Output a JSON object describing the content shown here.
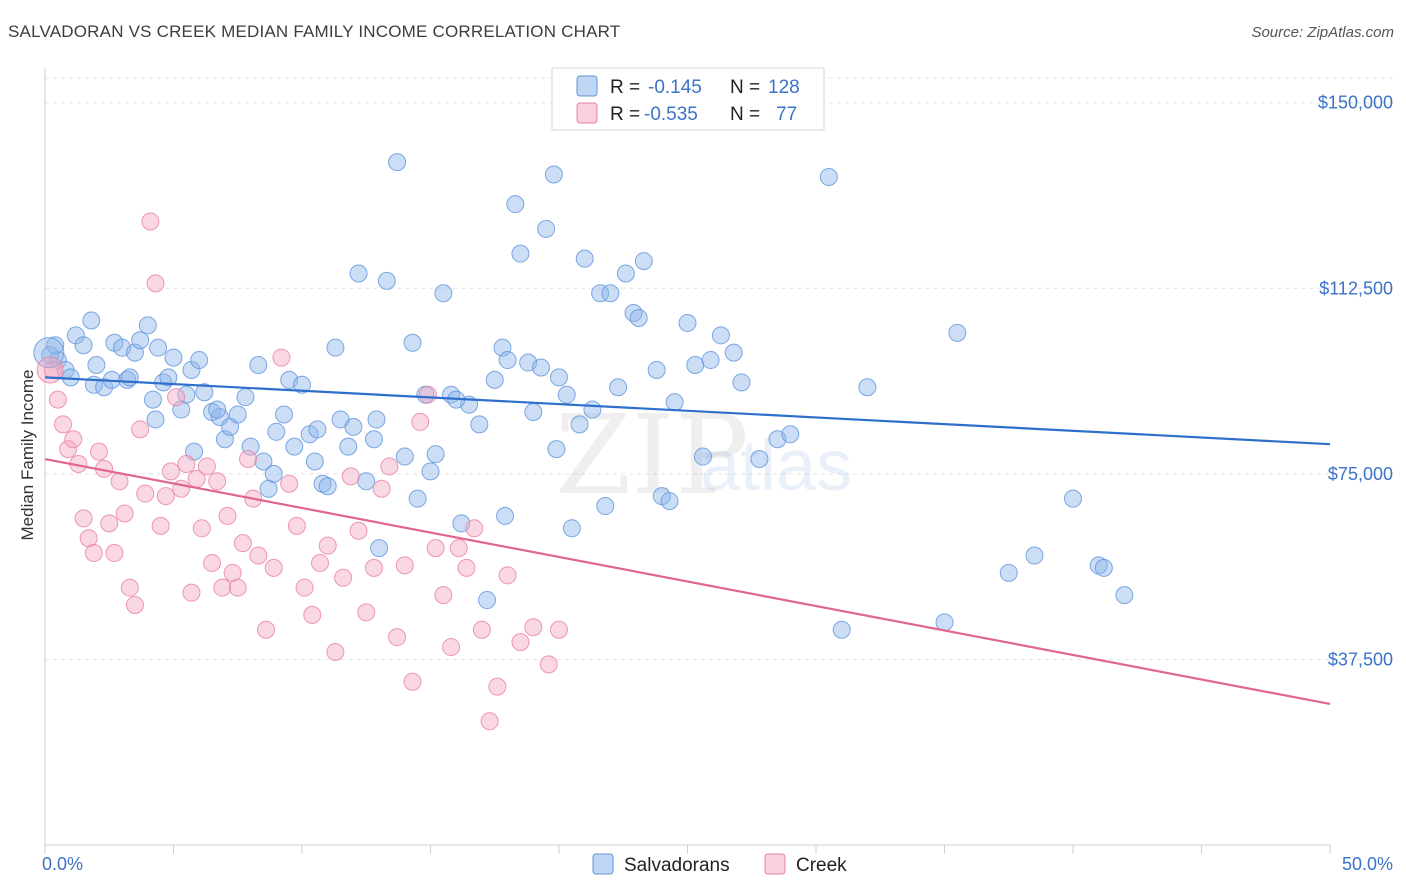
{
  "header": {
    "title": "SALVADORAN VS CREEK MEDIAN FAMILY INCOME CORRELATION CHART",
    "source": "Source: ZipAtlas.com"
  },
  "watermark": {
    "zip": "ZIP",
    "atlas": "atlas"
  },
  "legend": {
    "r_label": "R =",
    "n_label": "N =",
    "rows": [
      {
        "series": "Salvadorans",
        "r": "-0.145",
        "n": "128"
      },
      {
        "series": "Creek",
        "r": "-0.535",
        "n": "77"
      }
    ]
  },
  "colors": {
    "salvadorans": "#8db6ea",
    "salvadorans_line": "#2f6fcc",
    "creek": "#f4a9c2",
    "creek_line": "#e06690",
    "tick_label": "#3b73c8",
    "grid": "#e3e3e3"
  },
  "chart_data": {
    "type": "scatter",
    "xlabel": "",
    "ylabel": "Median Family Income",
    "xlim": [
      0,
      50
    ],
    "ylim": [
      0,
      155000
    ],
    "x_tick_labels": [
      "0.0%",
      "50.0%"
    ],
    "y_ticks": [
      {
        "value": 150000,
        "label": "$150,000"
      },
      {
        "value": 112500,
        "label": "$112,500"
      },
      {
        "value": 75000,
        "label": "$75,000"
      },
      {
        "value": 37500,
        "label": "$37,500"
      }
    ],
    "grid": true,
    "legend_position": "top-center",
    "series": [
      {
        "name": "Salvadorans",
        "trend": {
          "x": [
            0,
            50
          ],
          "y": [
            94500,
            81000
          ]
        },
        "points": [
          [
            0.2,
            99000
          ],
          [
            0.5,
            98000
          ],
          [
            0.8,
            96000
          ],
          [
            1.2,
            103000
          ],
          [
            1.5,
            101000
          ],
          [
            1.8,
            106000
          ],
          [
            1.9,
            93000
          ],
          [
            2.3,
            92500
          ],
          [
            2.6,
            94000
          ],
          [
            2.7,
            101500
          ],
          [
            3.0,
            100500
          ],
          [
            3.2,
            94000
          ],
          [
            3.3,
            94500
          ],
          [
            3.5,
            99500
          ],
          [
            3.7,
            102000
          ],
          [
            4.0,
            105000
          ],
          [
            4.2,
            90000
          ],
          [
            4.3,
            86000
          ],
          [
            4.4,
            100500
          ],
          [
            4.6,
            93500
          ],
          [
            4.8,
            94500
          ],
          [
            5.0,
            98500
          ],
          [
            5.3,
            88000
          ],
          [
            5.5,
            91000
          ],
          [
            5.7,
            96000
          ],
          [
            6.0,
            98000
          ],
          [
            6.2,
            91500
          ],
          [
            6.5,
            87500
          ],
          [
            6.8,
            86500
          ],
          [
            7.0,
            82000
          ],
          [
            7.2,
            84500
          ],
          [
            7.5,
            87000
          ],
          [
            7.8,
            90500
          ],
          [
            8.0,
            80500
          ],
          [
            8.3,
            97000
          ],
          [
            8.5,
            77500
          ],
          [
            8.7,
            72000
          ],
          [
            9.0,
            83500
          ],
          [
            9.3,
            87000
          ],
          [
            9.5,
            94000
          ],
          [
            9.7,
            80500
          ],
          [
            10.0,
            93000
          ],
          [
            10.3,
            83000
          ],
          [
            10.5,
            77500
          ],
          [
            10.8,
            73000
          ],
          [
            11.0,
            72500
          ],
          [
            11.3,
            100500
          ],
          [
            11.5,
            86000
          ],
          [
            11.8,
            80500
          ],
          [
            12.0,
            84500
          ],
          [
            12.2,
            115500
          ],
          [
            12.5,
            73500
          ],
          [
            12.8,
            82000
          ],
          [
            13.0,
            60000
          ],
          [
            13.3,
            114000
          ],
          [
            13.7,
            138000
          ],
          [
            14.0,
            78500
          ],
          [
            14.3,
            101500
          ],
          [
            14.5,
            70000
          ],
          [
            14.8,
            91000
          ],
          [
            15.2,
            79000
          ],
          [
            15.5,
            111500
          ],
          [
            15.8,
            91000
          ],
          [
            16.2,
            65000
          ],
          [
            16.5,
            89000
          ],
          [
            16.9,
            85000
          ],
          [
            17.2,
            49500
          ],
          [
            17.5,
            94000
          ],
          [
            17.8,
            100500
          ],
          [
            18.0,
            98000
          ],
          [
            18.3,
            129500
          ],
          [
            18.5,
            119500
          ],
          [
            18.8,
            97500
          ],
          [
            19.0,
            87500
          ],
          [
            19.3,
            96500
          ],
          [
            19.5,
            124500
          ],
          [
            19.8,
            135500
          ],
          [
            20.0,
            94500
          ],
          [
            20.3,
            91000
          ],
          [
            20.5,
            64000
          ],
          [
            20.8,
            85000
          ],
          [
            21.0,
            118500
          ],
          [
            21.3,
            88000
          ],
          [
            21.6,
            111500
          ],
          [
            22.0,
            111500
          ],
          [
            22.3,
            92500
          ],
          [
            22.6,
            115500
          ],
          [
            22.9,
            107500
          ],
          [
            23.1,
            106500
          ],
          [
            23.3,
            118000
          ],
          [
            24.0,
            70500
          ],
          [
            24.3,
            69500
          ],
          [
            24.5,
            89500
          ],
          [
            25.0,
            105500
          ],
          [
            25.3,
            97000
          ],
          [
            25.6,
            78500
          ],
          [
            25.9,
            98000
          ],
          [
            26.3,
            103000
          ],
          [
            26.8,
            99500
          ],
          [
            27.1,
            93500
          ],
          [
            28.5,
            82000
          ],
          [
            29.0,
            83000
          ],
          [
            30.5,
            135000
          ],
          [
            31.0,
            43500
          ],
          [
            32.0,
            92500
          ],
          [
            35.0,
            45000
          ],
          [
            35.5,
            103500
          ],
          [
            37.5,
            55000
          ],
          [
            38.5,
            58500
          ],
          [
            40.0,
            70000
          ],
          [
            41.0,
            56500
          ],
          [
            41.2,
            56000
          ],
          [
            42.0,
            50500
          ],
          [
            0.4,
            101000
          ],
          [
            1.0,
            94500
          ],
          [
            2.0,
            97000
          ],
          [
            5.8,
            79500
          ],
          [
            6.7,
            88000
          ],
          [
            8.9,
            75000
          ],
          [
            10.6,
            84000
          ],
          [
            12.9,
            86000
          ],
          [
            15.0,
            75500
          ],
          [
            16.0,
            90000
          ],
          [
            17.9,
            66500
          ],
          [
            19.9,
            80000
          ],
          [
            21.8,
            68500
          ],
          [
            23.8,
            96000
          ],
          [
            27.8,
            78000
          ]
        ]
      },
      {
        "name": "Creek",
        "trend": {
          "x": [
            0,
            50
          ],
          "y": [
            78000,
            28500
          ]
        },
        "points": [
          [
            0.3,
            96000
          ],
          [
            0.5,
            90000
          ],
          [
            0.7,
            85000
          ],
          [
            0.9,
            80000
          ],
          [
            1.1,
            82000
          ],
          [
            1.3,
            77000
          ],
          [
            1.5,
            66000
          ],
          [
            1.7,
            62000
          ],
          [
            1.9,
            59000
          ],
          [
            2.1,
            79500
          ],
          [
            2.3,
            76000
          ],
          [
            2.5,
            65000
          ],
          [
            2.7,
            59000
          ],
          [
            2.9,
            73500
          ],
          [
            3.1,
            67000
          ],
          [
            3.3,
            52000
          ],
          [
            3.5,
            48500
          ],
          [
            3.7,
            84000
          ],
          [
            3.9,
            71000
          ],
          [
            4.1,
            126000
          ],
          [
            4.3,
            113500
          ],
          [
            4.5,
            64500
          ],
          [
            4.7,
            70500
          ],
          [
            4.9,
            75500
          ],
          [
            5.1,
            90500
          ],
          [
            5.3,
            72000
          ],
          [
            5.5,
            77000
          ],
          [
            5.7,
            51000
          ],
          [
            5.9,
            74000
          ],
          [
            6.1,
            64000
          ],
          [
            6.3,
            76500
          ],
          [
            6.5,
            57000
          ],
          [
            6.7,
            73500
          ],
          [
            6.9,
            52000
          ],
          [
            7.1,
            66500
          ],
          [
            7.3,
            55000
          ],
          [
            7.5,
            52000
          ],
          [
            7.7,
            61000
          ],
          [
            7.9,
            78000
          ],
          [
            8.1,
            70000
          ],
          [
            8.3,
            58500
          ],
          [
            8.6,
            43500
          ],
          [
            8.9,
            56000
          ],
          [
            9.2,
            98500
          ],
          [
            9.5,
            73000
          ],
          [
            9.8,
            64500
          ],
          [
            10.1,
            52000
          ],
          [
            10.4,
            46500
          ],
          [
            10.7,
            57000
          ],
          [
            11.0,
            60500
          ],
          [
            11.3,
            39000
          ],
          [
            11.6,
            54000
          ],
          [
            11.9,
            74500
          ],
          [
            12.2,
            63500
          ],
          [
            12.5,
            47000
          ],
          [
            12.8,
            56000
          ],
          [
            13.1,
            72000
          ],
          [
            13.4,
            76500
          ],
          [
            13.7,
            42000
          ],
          [
            14.0,
            56500
          ],
          [
            14.3,
            33000
          ],
          [
            14.6,
            85500
          ],
          [
            14.9,
            91000
          ],
          [
            15.2,
            60000
          ],
          [
            15.5,
            50500
          ],
          [
            15.8,
            40000
          ],
          [
            16.1,
            60000
          ],
          [
            16.4,
            56000
          ],
          [
            16.7,
            64000
          ],
          [
            17.0,
            43500
          ],
          [
            17.3,
            25000
          ],
          [
            17.6,
            32000
          ],
          [
            18.0,
            54500
          ],
          [
            18.5,
            41000
          ],
          [
            19.0,
            44000
          ],
          [
            19.6,
            36500
          ],
          [
            20.0,
            43500
          ]
        ]
      }
    ]
  },
  "bottom_legend": [
    "Salvadorans",
    "Creek"
  ]
}
